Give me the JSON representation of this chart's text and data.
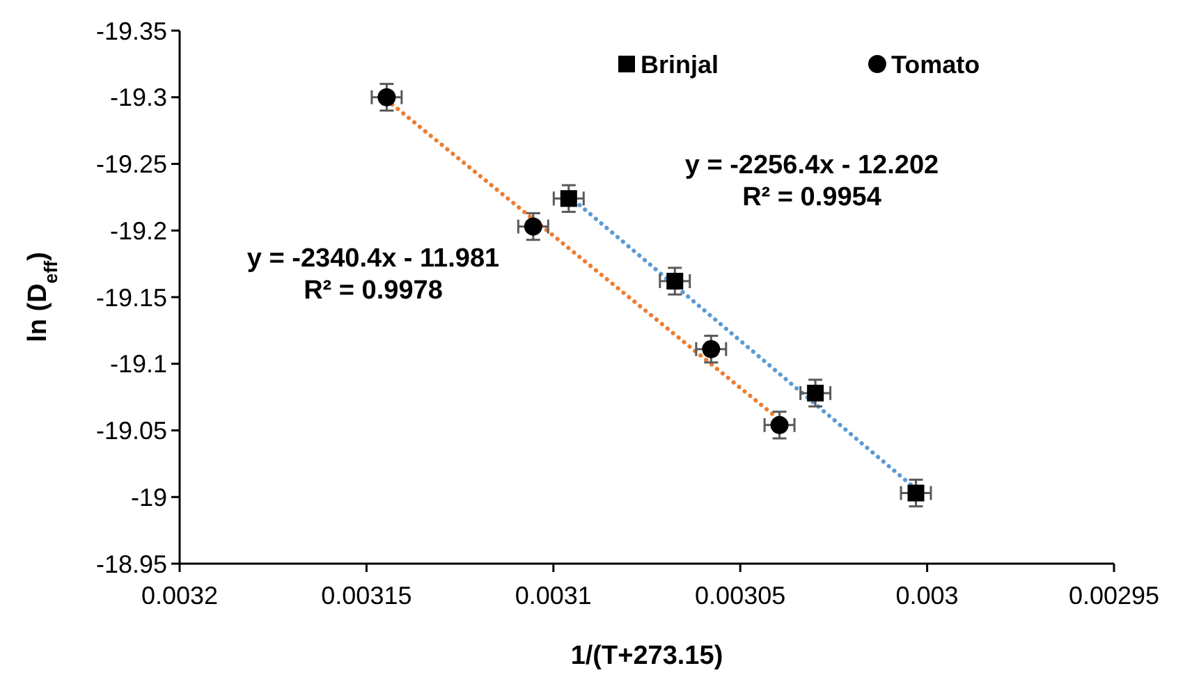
{
  "chart_data": {
    "type": "scatter",
    "xlabel": "1/(T+273.15)",
    "ylabel": "ln (D$_{eff}$)",
    "xlim": [
      0.0032,
      0.00295
    ],
    "xticks": [
      0.0032,
      0.00315,
      0.0031,
      0.00305,
      0.003,
      0.00295
    ],
    "ylim": [
      -18.95,
      -19.35
    ],
    "yticks": [
      -19.35,
      -19.3,
      -19.25,
      -19.2,
      -19.15,
      -19.1,
      -19.05,
      -19,
      -18.95
    ],
    "grid": false,
    "legend": "top right",
    "series": [
      {
        "name": "Brinjal",
        "marker": "square",
        "color": "#000000",
        "x": [
          0.0030959,
          0.0030675,
          0.0030299,
          0.003003
        ],
        "values": [
          -19.224,
          -19.162,
          -19.078,
          -19.003
        ],
        "errors": [
          0.01,
          0.01,
          0.01,
          0.01
        ],
        "xerrors": [
          4e-06,
          4e-06,
          4e-06,
          4e-06
        ]
      },
      {
        "name": "Tomato",
        "marker": "circle",
        "color": "#000000",
        "x": [
          0.0031446,
          0.0031054,
          0.0030578,
          0.0030395
        ],
        "values": [
          -19.3,
          -19.203,
          -19.111,
          -19.054
        ],
        "errors": [
          0.01,
          0.01,
          0.01,
          0.01
        ],
        "xerrors": [
          4e-06,
          4e-06,
          4e-06,
          4e-06
        ]
      },
      {
        "type": "line",
        "line_style": "dotted",
        "marker": "none",
        "color": "#5b9bd5",
        "x": [
          0.0030959,
          0.003003
        ],
        "values": [
          -19.226,
          -19.006
        ]
      },
      {
        "type": "line",
        "line_style": "dotted",
        "marker": "none",
        "color": "#ed7d31",
        "x": [
          0.0031446,
          0.0030395
        ],
        "values": [
          -19.298,
          -19.058
        ]
      }
    ],
    "annotations": [
      "y = -2256.4x - 12.202",
      "R² = 0.9954",
      "y = -2340.4x - 11.981",
      "R² = 0.9978"
    ]
  }
}
